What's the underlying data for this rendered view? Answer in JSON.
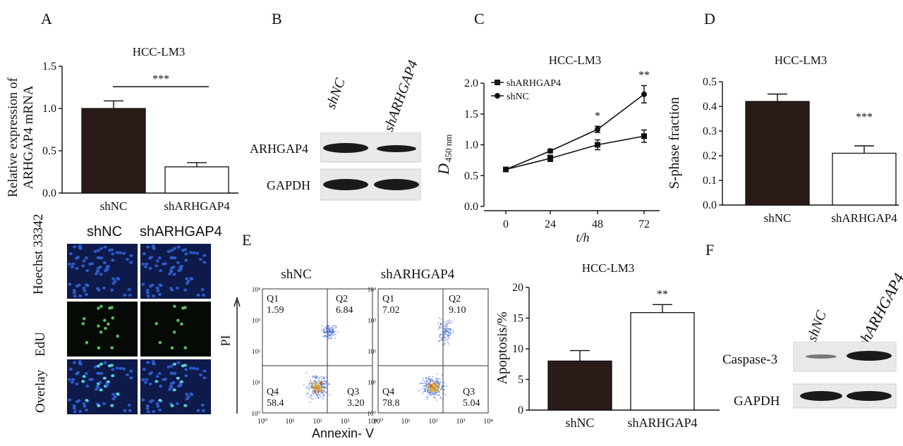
{
  "panel_labels": {
    "a": "A",
    "b": "B",
    "c": "C",
    "d": "D",
    "e": "E",
    "f": "F"
  },
  "colors": {
    "dark_bar": "#2a1a18",
    "light_bar": "#ffffff",
    "axis": "#111111"
  },
  "panelA": {
    "chart_data": {
      "type": "bar",
      "title": "HCC-LM3",
      "ylabel_line1": "Relative expression of",
      "ylabel_line2": "ARHGAP4 mRNA",
      "categories": [
        "shNC",
        "shARHGAP4"
      ],
      "values": [
        1.0,
        0.31
      ],
      "errors": [
        0.09,
        0.05
      ],
      "ylim": [
        0,
        1.5
      ],
      "yticks": [
        "0.0",
        "0.5",
        "1.0",
        "1.5"
      ],
      "significance": "***"
    }
  },
  "panelB": {
    "lanes": [
      "shNC",
      "shARHGAP4"
    ],
    "rows": [
      "ARHGAP4",
      "GAPDH"
    ]
  },
  "panelC": {
    "chart_data": {
      "type": "line",
      "title": "HCC-LM3",
      "ylabel_main": "D",
      "ylabel_sub": "450 nm",
      "xlabel": "t/h",
      "x": [
        0,
        24,
        48,
        72
      ],
      "xticks": [
        "0",
        "24",
        "48",
        "72"
      ],
      "yticks": [
        "0.0",
        "0.5",
        "1.0",
        "1.5",
        "2.0"
      ],
      "ylim": [
        0,
        2.0
      ],
      "series": [
        {
          "name": "shARHGAP4",
          "marker": "square",
          "values": [
            0.6,
            0.78,
            1.0,
            1.14
          ],
          "errors": [
            0.03,
            0.05,
            0.08,
            0.1
          ]
        },
        {
          "name": "shNC",
          "marker": "circle",
          "values": [
            0.6,
            0.9,
            1.25,
            1.82
          ],
          "errors": [
            0.03,
            0.03,
            0.05,
            0.14
          ]
        }
      ],
      "annotations": [
        {
          "x": 48,
          "text": "*"
        },
        {
          "x": 72,
          "text": "**"
        }
      ]
    }
  },
  "panelD": {
    "chart_data": {
      "type": "bar",
      "title": "HCC-LM3",
      "ylabel": "S-phase fraction",
      "categories": [
        "shNC",
        "shARHGAP4"
      ],
      "values": [
        0.42,
        0.21
      ],
      "errors": [
        0.03,
        0.03
      ],
      "ylim": [
        0,
        0.5
      ],
      "yticks": [
        "0.0",
        "0.1",
        "0.2",
        "0.3",
        "0.4",
        "0.5"
      ],
      "significance": "***"
    }
  },
  "edu": {
    "columns": [
      "shNC",
      "shARHGAP4"
    ],
    "rows": [
      "Hoechst 33342",
      "EdU",
      "Overlay"
    ]
  },
  "flow": {
    "ylabel": "PI",
    "xlabel": "Annexin- V",
    "xticks": [
      "10⁰",
      "10¹",
      "10²",
      "10³",
      "10⁴"
    ],
    "yticks": [
      "10⁴",
      "10³",
      "10²",
      "10¹",
      "10⁰"
    ],
    "plots": [
      {
        "title": "shNC",
        "q1": "Q1",
        "q1v": "1.59",
        "q2": "Q2",
        "q2v": "6.84",
        "q3": "Q3",
        "q3v": "3.20",
        "q4": "Q4",
        "q4v": "58.4"
      },
      {
        "title": "shARHGAP4",
        "q1": "Q1",
        "q1v": "7.02",
        "q2": "Q2",
        "q2v": "9.10",
        "q3": "Q3",
        "q3v": "5.04",
        "q4": "Q4",
        "q4v": "78.8"
      }
    ]
  },
  "panelE": {
    "chart_data": {
      "type": "bar",
      "title": "HCC-LM3",
      "ylabel": "Apoptosis/%",
      "categories": [
        "shNC",
        "shARHGAP4"
      ],
      "values": [
        8.0,
        15.9
      ],
      "errors": [
        1.7,
        1.3
      ],
      "ylim": [
        0,
        20
      ],
      "yticks": [
        "0",
        "5",
        "10",
        "15",
        "20"
      ],
      "significance": "**"
    }
  },
  "panelF": {
    "lanes": [
      "shNC",
      "shARHGAP4"
    ],
    "rows": [
      "Caspase-3",
      "GAPDH"
    ]
  }
}
